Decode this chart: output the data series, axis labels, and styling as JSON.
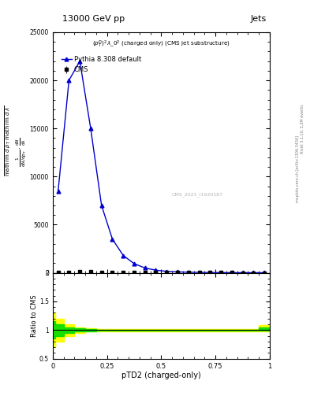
{
  "title_top": "13000 GeV pp",
  "title_right": "Jets",
  "annotation": "$(p_T^D)^2\\lambda\\_0^2$ (charged only) (CMS jet substructure)",
  "watermark": "CMS_2021_I1920187",
  "right_label": "mcplots.cern.ch [arXiv:1306.3436]",
  "rivet_label": "Rivet 3.1.10, 3.3M events",
  "xlabel": "pTD2 (charged-only)",
  "ylabel_ratio": "Ratio to CMS",
  "xlim": [
    0,
    1
  ],
  "main_ylim": [
    0,
    25000
  ],
  "ratio_ylim": [
    0.5,
    2.0
  ],
  "cms_x": [
    0.025,
    0.075,
    0.125,
    0.175,
    0.225,
    0.275,
    0.325,
    0.375,
    0.425,
    0.475,
    0.525,
    0.575,
    0.625,
    0.675,
    0.725,
    0.775,
    0.825,
    0.875,
    0.925,
    0.975
  ],
  "cms_y": [
    50,
    80,
    100,
    90,
    60,
    40,
    30,
    20,
    15,
    12,
    10,
    8,
    7,
    6,
    5,
    4,
    4,
    3,
    3,
    2
  ],
  "cms_err": [
    10,
    15,
    15,
    12,
    10,
    8,
    7,
    5,
    4,
    3,
    3,
    2,
    2,
    2,
    2,
    1,
    1,
    1,
    1,
    1
  ],
  "pythia_x": [
    0.025,
    0.075,
    0.125,
    0.175,
    0.225,
    0.275,
    0.325,
    0.375,
    0.425,
    0.475,
    0.525,
    0.575,
    0.625,
    0.675,
    0.725,
    0.775,
    0.825,
    0.875,
    0.925,
    0.975
  ],
  "pythia_y": [
    8500,
    20000,
    22000,
    15000,
    7000,
    3500,
    1800,
    950,
    500,
    270,
    150,
    90,
    60,
    40,
    28,
    20,
    14,
    10,
    7,
    5
  ],
  "cms_color": "#000000",
  "pythia_color": "#0000cc",
  "green_band_color": "#00dd00",
  "yellow_band_color": "#ffff00",
  "ratio_x": [
    0.0,
    0.025,
    0.075,
    0.125,
    0.175,
    0.225,
    0.275,
    0.325,
    0.375,
    0.425,
    0.475,
    0.525,
    0.575,
    0.625,
    0.675,
    0.725,
    0.775,
    0.825,
    0.875,
    0.925,
    0.975,
    1.0
  ],
  "ratio_yellow_low": [
    0.7,
    0.8,
    0.9,
    0.95,
    0.97,
    0.98,
    0.98,
    0.98,
    0.98,
    0.98,
    0.98,
    0.98,
    0.98,
    0.98,
    0.98,
    0.98,
    0.98,
    0.98,
    0.98,
    0.98,
    0.98,
    0.98
  ],
  "ratio_yellow_high": [
    1.3,
    1.2,
    1.1,
    1.05,
    1.03,
    1.02,
    1.02,
    1.02,
    1.02,
    1.02,
    1.02,
    1.02,
    1.02,
    1.02,
    1.02,
    1.02,
    1.02,
    1.02,
    1.02,
    1.02,
    1.08,
    1.08
  ],
  "ratio_green_low": [
    0.85,
    0.9,
    0.95,
    0.97,
    0.98,
    0.99,
    0.99,
    0.99,
    0.99,
    0.99,
    0.99,
    0.99,
    0.99,
    0.99,
    0.99,
    0.99,
    0.99,
    0.99,
    0.99,
    0.99,
    0.99,
    0.99
  ],
  "ratio_green_high": [
    1.15,
    1.1,
    1.05,
    1.03,
    1.02,
    1.01,
    1.01,
    1.01,
    1.01,
    1.01,
    1.01,
    1.01,
    1.01,
    1.01,
    1.01,
    1.01,
    1.01,
    1.01,
    1.01,
    1.01,
    1.04,
    1.04
  ],
  "yticks_main": [
    0,
    5000,
    10000,
    15000,
    20000,
    25000
  ],
  "ytick_labels_main": [
    "0",
    "5000",
    "10000",
    "15000",
    "20000",
    "25000"
  ],
  "yticks_ratio": [
    0.5,
    1.0,
    1.5,
    2.0
  ],
  "ytick_labels_ratio": [
    "0.5",
    "1",
    "1.5",
    "2"
  ],
  "xticks": [
    0,
    0.25,
    0.5,
    0.75,
    1.0
  ],
  "xtick_labels": [
    "0",
    "0.25",
    "0.5",
    "0.75",
    "1"
  ]
}
